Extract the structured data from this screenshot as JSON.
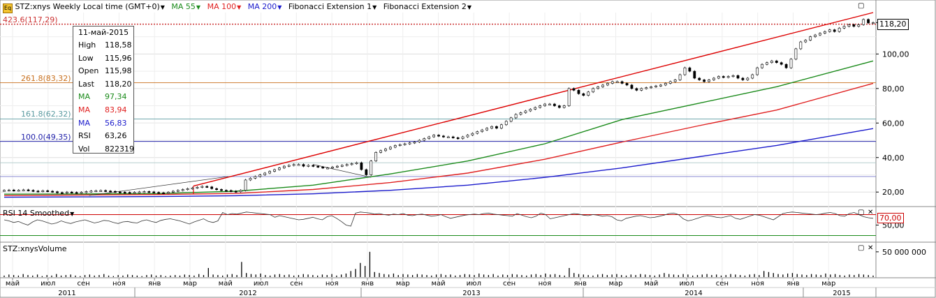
{
  "header": {
    "symbol": "STZ:xnys Weekly Local time (GMT+0)",
    "ma55": "MA 55",
    "ma100": "MA 100",
    "ma200": "MA 200",
    "fib1": "Fibonacci Extension 1",
    "fib2": "Fibonacci Extension 2"
  },
  "colors": {
    "ma55": "#1a8a1a",
    "ma100": "#e02020",
    "ma200": "#1a1acc",
    "channel": "#dd0000",
    "fib423": "#cc3333",
    "fib261": "#c8701e",
    "fib161": "#5a9aa0",
    "fib100": "#2222aa"
  },
  "tooltip": {
    "date": "11-май-2015",
    "rows": [
      {
        "label": "High",
        "value": "118,58",
        "color": "#000000"
      },
      {
        "label": "Low",
        "value": "115,96",
        "color": "#000000"
      },
      {
        "label": "Open",
        "value": "115,98",
        "color": "#000000"
      },
      {
        "label": "Last",
        "value": "118,20",
        "color": "#000000"
      },
      {
        "label": "MA",
        "value": "97,34",
        "color": "#1a8a1a"
      },
      {
        "label": "MA",
        "value": "83,94",
        "color": "#e02020"
      },
      {
        "label": "MA",
        "value": "56,83",
        "color": "#1a1acc"
      },
      {
        "label": "RSI",
        "value": "63,26",
        "color": "#000000"
      },
      {
        "label": "Vol",
        "value": "822319",
        "color": "#000000"
      }
    ]
  },
  "fib_levels": [
    {
      "label": "423.6(117,29)",
      "value": 117.29,
      "color": "#cc3333"
    },
    {
      "label": "261.8(83,32)",
      "value": 83.32,
      "color": "#c8701e"
    },
    {
      "label": "161.8(62,32)",
      "value": 62.32,
      "color": "#5a9aa0"
    },
    {
      "label": "100.0(49,35)",
      "value": 49.35,
      "color": "#2222aa"
    }
  ],
  "price_axis": {
    "ticks": [
      "20,00",
      "40,00",
      "60,00",
      "80,00",
      "100,00"
    ],
    "last_price": "118,20"
  },
  "rsi_panel": {
    "title": "RSI 14 Smoothed",
    "ticks": [
      "50,00"
    ],
    "level": "70,00"
  },
  "volume_panel": {
    "title": "STZ:xnysVolume",
    "ticks": [
      "50 000 000"
    ]
  },
  "time_axis": {
    "months": [
      "май",
      "июл",
      "сен",
      "ноя",
      "янв",
      "мар",
      "май",
      "июл",
      "сен",
      "ноя",
      "янв",
      "мар",
      "май",
      "июл",
      "сен",
      "ноя",
      "янв",
      "мар",
      "май",
      "июл",
      "сен",
      "ноя",
      "янв",
      "мар"
    ],
    "years": [
      "2011",
      "2012",
      "2013",
      "2014",
      "2015"
    ]
  },
  "chart_data": {
    "type": "line",
    "timeframe": "Weekly",
    "x_range": [
      "2011-04",
      "2015-05"
    ],
    "ylim": [
      12,
      124
    ],
    "log_scale": false,
    "grid": true,
    "price_close_weekly": [
      21.0,
      21.2,
      20.9,
      21.1,
      21.3,
      21.0,
      20.6,
      20.4,
      20.8,
      20.5,
      20.2,
      19.7,
      19.5,
      20.0,
      19.8,
      19.6,
      19.9,
      20.3,
      20.6,
      20.8,
      20.9,
      20.6,
      20.4,
      20.1,
      19.9,
      19.8,
      19.7,
      19.9,
      20.1,
      20.3,
      20.1,
      19.8,
      19.6,
      19.4,
      19.9,
      20.5,
      21.0,
      21.5,
      22.0,
      22.4,
      22.8,
      23.3,
      23.0,
      22.0,
      21.5,
      21.0,
      20.9,
      20.5,
      20.2,
      21.0,
      27.0,
      28.0,
      29.0,
      30.0,
      31.0,
      32.0,
      33.0,
      34.0,
      35.0,
      35.5,
      36.0,
      36.0,
      35.0,
      35.5,
      35.0,
      34.5,
      34.0,
      34.0,
      34.5,
      35.0,
      35.5,
      36.0,
      36.5,
      37.0,
      33.0,
      30.0,
      38.0,
      43.0,
      44.0,
      45.0,
      46.0,
      47.0,
      47.5,
      48.0,
      48.5,
      49.0,
      50.0,
      51.0,
      52.0,
      53.0,
      52.5,
      52.0,
      52.0,
      51.5,
      51.0,
      52.0,
      53.0,
      54.0,
      55.0,
      56.0,
      57.0,
      58.0,
      57.0,
      59.0,
      61.0,
      63.0,
      65.0,
      66.0,
      67.0,
      68.0,
      69.0,
      70.0,
      71.0,
      71.0,
      70.0,
      69.0,
      70.0,
      80.0,
      79.0,
      77.0,
      76.0,
      78.0,
      80.0,
      81.0,
      82.0,
      83.0,
      84.0,
      84.0,
      83.0,
      82.0,
      80.0,
      79.0,
      80.0,
      80.5,
      81.0,
      81.5,
      82.0,
      83.0,
      84.0,
      85.0,
      88.0,
      92.0,
      90.0,
      86.0,
      85.0,
      84.0,
      85.0,
      86.0,
      87.0,
      86.5,
      87.0,
      87.5,
      86.0,
      85.0,
      86.0,
      88.0,
      92.0,
      94.0,
      95.0,
      96.0,
      95.0,
      94.0,
      92.0,
      97.0,
      103.0,
      107.0,
      108.0,
      110.0,
      111.0,
      112.0,
      113.0,
      114.0,
      113.0,
      115.0,
      116.0,
      117.0,
      116.0,
      117.0,
      120.0,
      118.0,
      118.2
    ],
    "series": [
      {
        "name": "MA 55",
        "color": "#1a8a1a",
        "points": [
          [
            0,
            18.8
          ],
          [
            20,
            18.9
          ],
          [
            40,
            19.1
          ],
          [
            60,
            20.5
          ],
          [
            80,
            24.0
          ],
          [
            100,
            30.5
          ],
          [
            120,
            38.0
          ],
          [
            140,
            48.0
          ],
          [
            160,
            62.0
          ],
          [
            180,
            71.5
          ],
          [
            200,
            81.0
          ],
          [
            225,
            96.0
          ]
        ]
      },
      {
        "name": "MA 100",
        "color": "#e02020",
        "points": [
          [
            0,
            18.0
          ],
          [
            20,
            18.3
          ],
          [
            40,
            18.6
          ],
          [
            60,
            19.2
          ],
          [
            80,
            21.5
          ],
          [
            100,
            25.5
          ],
          [
            120,
            31.0
          ],
          [
            140,
            39.0
          ],
          [
            160,
            49.0
          ],
          [
            180,
            58.5
          ],
          [
            200,
            67.5
          ],
          [
            225,
            83.0
          ]
        ]
      },
      {
        "name": "MA 200",
        "color": "#1a1acc",
        "points": [
          [
            0,
            17.0
          ],
          [
            20,
            17.2
          ],
          [
            40,
            17.4
          ],
          [
            60,
            17.9
          ],
          [
            80,
            19.0
          ],
          [
            100,
            21.0
          ],
          [
            120,
            24.0
          ],
          [
            140,
            28.5
          ],
          [
            160,
            34.0
          ],
          [
            180,
            40.5
          ],
          [
            200,
            47.0
          ],
          [
            225,
            56.8
          ]
        ]
      }
    ],
    "channel_line": {
      "from": [
        49,
        23.5
      ],
      "to": [
        225,
        124.0
      ]
    },
    "thin_trend_line": {
      "from": [
        22,
        18.0
      ],
      "to": [
        58,
        29.0
      ]
    },
    "rsi_level": 70,
    "rsi_ylim": [
      20,
      80
    ],
    "rsi_values": [
      60,
      58,
      55,
      57,
      53,
      50,
      56,
      60,
      58,
      55,
      52,
      54,
      58,
      55,
      53,
      56,
      58,
      60,
      57,
      54,
      56,
      59,
      58,
      55,
      53,
      56,
      57,
      55,
      54,
      58,
      60,
      57,
      55,
      59,
      61,
      62,
      60,
      58,
      55,
      52,
      56,
      59,
      62,
      57,
      55,
      58,
      74,
      70,
      72,
      71,
      73,
      75,
      74,
      73,
      72,
      71,
      70,
      65,
      68,
      66,
      64,
      62,
      60,
      61,
      63,
      65,
      62,
      60,
      66,
      68,
      63,
      57,
      50,
      48,
      73,
      75,
      74,
      73,
      71,
      72,
      70,
      69,
      71,
      70,
      72,
      69,
      68,
      70,
      71,
      69,
      67,
      68,
      70,
      66,
      63,
      65,
      67,
      69,
      70,
      71,
      70,
      72,
      73,
      71,
      70,
      69,
      68,
      67,
      72,
      69,
      66,
      64,
      67,
      73,
      70,
      62,
      64,
      66,
      68,
      70,
      72,
      71,
      69,
      68,
      70,
      69,
      67,
      68,
      66,
      60,
      58,
      63,
      65,
      67,
      68,
      66,
      64,
      65,
      67,
      69,
      72,
      73,
      70,
      62,
      58,
      60,
      63,
      66,
      68,
      67,
      65,
      64,
      66,
      68,
      63,
      61,
      64,
      67,
      70,
      69,
      66,
      63,
      60,
      66,
      72,
      74,
      75,
      74,
      73,
      72,
      71,
      70,
      71,
      73,
      74,
      72,
      68,
      67,
      72,
      74,
      70,
      66,
      64,
      63
    ],
    "volume_values": [
      3,
      5,
      4,
      3,
      6,
      4,
      3,
      5,
      2,
      4,
      3,
      6,
      3,
      4,
      5,
      3,
      2,
      4,
      5,
      3,
      4,
      6,
      3,
      2,
      4,
      3,
      5,
      4,
      3,
      2,
      4,
      5,
      3,
      4,
      2,
      3,
      4,
      3,
      5,
      4,
      3,
      6,
      4,
      18,
      5,
      4,
      3,
      5,
      6,
      4,
      30,
      8,
      6,
      5,
      7,
      4,
      3,
      5,
      6,
      4,
      5,
      3,
      4,
      6,
      5,
      4,
      3,
      5,
      4,
      6,
      3,
      5,
      7,
      12,
      16,
      28,
      22,
      50,
      10,
      8,
      6,
      5,
      7,
      4,
      6,
      5,
      4,
      6,
      5,
      4,
      3,
      5,
      6,
      4,
      5,
      3,
      4,
      6,
      5,
      4,
      7,
      5,
      4,
      6,
      3,
      5,
      4,
      6,
      5,
      4,
      3,
      5,
      6,
      4,
      7,
      5,
      6,
      4,
      3,
      18,
      8,
      6,
      5,
      4,
      3,
      5,
      6,
      4,
      5,
      6,
      4,
      3,
      5,
      4,
      6,
      5,
      4,
      3,
      5,
      8,
      6,
      5,
      4,
      6,
      5,
      3,
      4,
      5,
      6,
      4,
      5,
      3,
      4,
      6,
      5,
      4,
      3,
      5,
      6,
      4,
      12,
      10,
      8,
      6,
      5,
      7,
      8,
      6,
      5,
      4,
      6,
      5,
      4,
      7,
      5,
      6,
      4,
      3,
      5,
      4,
      6,
      5,
      4,
      3
    ],
    "volume_ylim": [
      0,
      65000000
    ],
    "volume_unit": 1000000
  }
}
